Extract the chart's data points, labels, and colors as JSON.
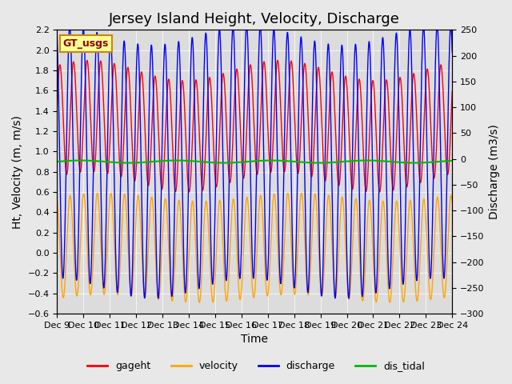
{
  "title": "Jersey Island Height, Velocity, Discharge",
  "xlabel": "Time",
  "ylabel_left": "Ht, Velocity (m, m/s)",
  "ylabel_right": "Discharge (m3/s)",
  "ylim_left": [
    -0.6,
    2.2
  ],
  "ylim_right": [
    -300,
    250
  ],
  "xtick_labels": [
    "Dec 9",
    "Dec 10",
    "Dec 11",
    "Dec 12",
    "Dec 13",
    "Dec 14",
    "Dec 15",
    "Dec 16",
    "Dec 17",
    "Dec 18",
    "Dec 19",
    "Dec 20",
    "Dec 21",
    "Dec 22",
    "Dec 23",
    "Dec 24"
  ],
  "colors": {
    "gageht": "#FF0000",
    "velocity": "#FFA500",
    "discharge": "#0000FF",
    "dis_tidal": "#00BB00"
  },
  "legend_label": "GT_usgs",
  "legend_bg": "#FFFF99",
  "legend_border": "#CC8800",
  "background_color": "#E8E8E8",
  "plot_bg": "#DCDCDC",
  "title_fontsize": 13,
  "axis_fontsize": 10,
  "tick_fontsize": 8,
  "yticks_left": [
    -0.6,
    -0.4,
    -0.2,
    0.0,
    0.2,
    0.4,
    0.6,
    0.8,
    1.0,
    1.2,
    1.4,
    1.6,
    1.8,
    2.0,
    2.2
  ],
  "yticks_right": [
    -300,
    -250,
    -200,
    -150,
    -100,
    -50,
    0,
    50,
    100,
    150,
    200,
    250
  ]
}
